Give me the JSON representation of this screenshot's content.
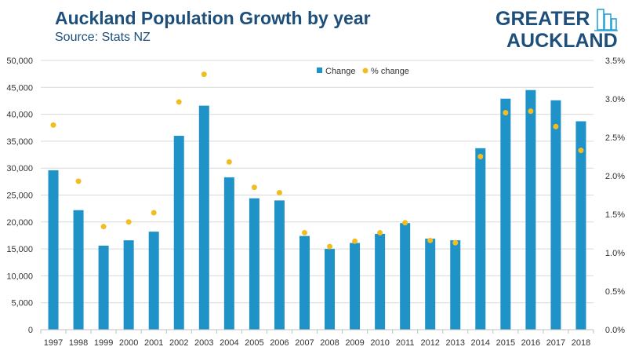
{
  "header": {
    "title": "Auckland Population Growth by year",
    "subtitle": "Source: Stats NZ"
  },
  "logo": {
    "line1": "GREATER",
    "line2": "AUCKLAND"
  },
  "colors": {
    "bar": "#1f93c8",
    "dot": "#f2bd21",
    "title": "#1d4f7a",
    "grid": "#d9d9d9"
  },
  "chart_data": {
    "type": "bar",
    "categories": [
      "1997",
      "1998",
      "1999",
      "2000",
      "2001",
      "2002",
      "2003",
      "2004",
      "2005",
      "2006",
      "2007",
      "2008",
      "2009",
      "2010",
      "2011",
      "2012",
      "2013",
      "2014",
      "2015",
      "2016",
      "2017",
      "2018"
    ],
    "series": [
      {
        "name": "Change",
        "type": "bar",
        "axis": "left",
        "values": [
          29600,
          22200,
          15600,
          16600,
          18200,
          36000,
          41600,
          28300,
          24400,
          24000,
          17400,
          15000,
          16100,
          17800,
          19800,
          16900,
          16600,
          33700,
          42900,
          44500,
          42600,
          38700
        ]
      },
      {
        "name": "% change",
        "type": "scatter",
        "axis": "right",
        "values": [
          2.66,
          1.93,
          1.34,
          1.4,
          1.52,
          2.96,
          3.32,
          2.18,
          1.85,
          1.78,
          1.26,
          1.08,
          1.15,
          1.26,
          1.39,
          1.16,
          1.13,
          2.25,
          2.82,
          2.84,
          2.64,
          2.33
        ]
      }
    ],
    "ylim": [
      0,
      50000
    ],
    "yticks": [
      "0",
      "5,000",
      "10,000",
      "15,000",
      "20,000",
      "25,000",
      "30,000",
      "35,000",
      "40,000",
      "45,000",
      "50,000"
    ],
    "y2lim": [
      0,
      3.5
    ],
    "y2ticks": [
      "0.0%",
      "0.5%",
      "1.0%",
      "1.5%",
      "2.0%",
      "2.5%",
      "3.0%",
      "3.5%"
    ],
    "grid": true,
    "legend": "top-center"
  }
}
